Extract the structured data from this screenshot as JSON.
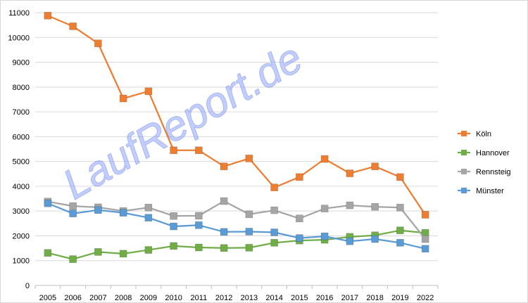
{
  "chart_data": {
    "type": "line",
    "title": "",
    "xlabel": "",
    "ylabel": "",
    "categories": [
      "2005",
      "2006",
      "2007",
      "2008",
      "2009",
      "2010",
      "2011",
      "2012",
      "2013",
      "2014",
      "2015",
      "2016",
      "2017",
      "2018",
      "2019",
      "2022"
    ],
    "ylim": [
      0,
      11000
    ],
    "yticks": [
      0,
      1000,
      2000,
      3000,
      4000,
      5000,
      6000,
      7000,
      8000,
      9000,
      10000,
      11000
    ],
    "grid": "horizontal",
    "legend_position": "right",
    "watermark": "LaufReport.de",
    "series": [
      {
        "name": "Köln",
        "color": "#ed7d31",
        "values": [
          10880,
          10450,
          9760,
          7540,
          7830,
          5450,
          5450,
          4800,
          5120,
          3950,
          4370,
          5100,
          4520,
          4800,
          4370,
          2850
        ]
      },
      {
        "name": "Hannover",
        "color": "#70ad47",
        "values": [
          1310,
          1060,
          1350,
          1280,
          1430,
          1590,
          1530,
          1510,
          1520,
          1720,
          1810,
          1840,
          1960,
          2020,
          2220,
          2120
        ]
      },
      {
        "name": "Rennsteig",
        "color": "#a5a5a5",
        "values": [
          3380,
          3200,
          3150,
          3000,
          3140,
          2800,
          2810,
          3400,
          2870,
          3030,
          2700,
          3100,
          3230,
          3170,
          3140,
          1870
        ]
      },
      {
        "name": "Münster",
        "color": "#5b9bd5",
        "values": [
          3310,
          2900,
          3040,
          2930,
          2730,
          2380,
          2430,
          2160,
          2170,
          2140,
          1910,
          1980,
          1780,
          1870,
          1720,
          1480
        ]
      }
    ]
  }
}
